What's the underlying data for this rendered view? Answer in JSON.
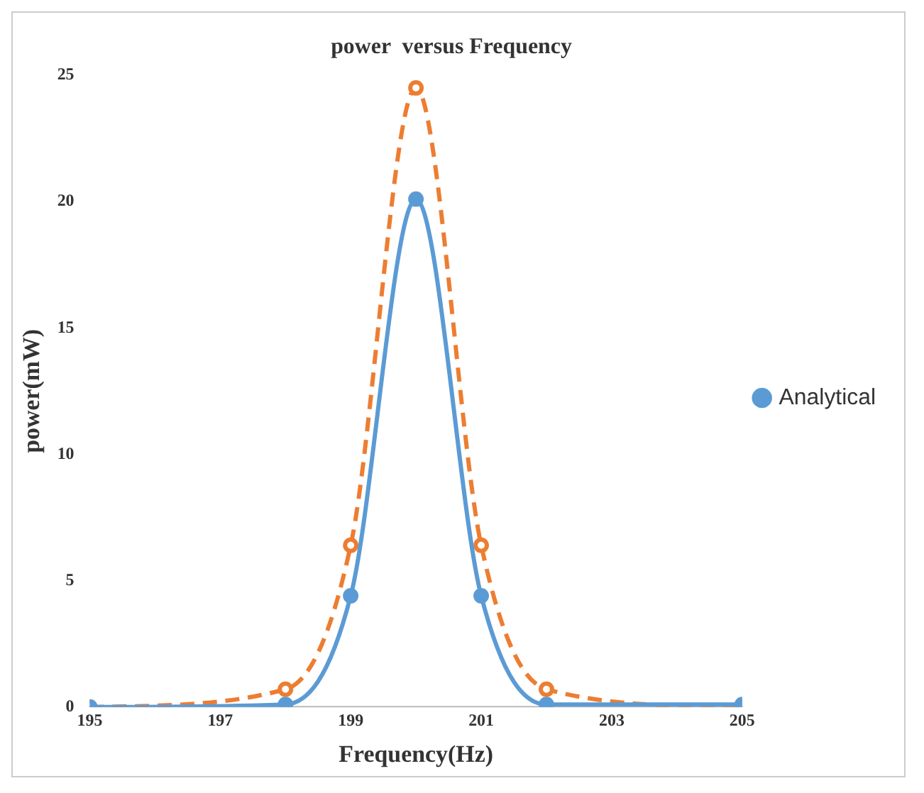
{
  "chart_data": {
    "type": "line",
    "title": "power  versus Frequency",
    "xlabel": "Frequency(Hz)",
    "ylabel": "power(mW)",
    "xlim": [
      195,
      205
    ],
    "xticks": [
      195,
      197,
      199,
      201,
      203,
      205
    ],
    "ylim": [
      0,
      25
    ],
    "yticks": [
      0,
      5,
      10,
      15,
      20,
      25
    ],
    "grid": false,
    "legend": "right",
    "marker": "circle",
    "series": [
      {
        "name": "Analytical",
        "color": "#5b9bd5",
        "x": [
          195,
          198,
          199,
          200,
          201,
          202,
          205
        ],
        "values": [
          0,
          0.1,
          4.4,
          20.1,
          4.4,
          0.1,
          0.1
        ],
        "line_style": "solid"
      },
      {
        "color": "#ed7d31",
        "x": [
          195,
          198,
          199,
          200,
          201,
          202,
          205
        ],
        "values": [
          0,
          0.7,
          6.4,
          24.5,
          6.4,
          0.7,
          0
        ],
        "line_style": "dashed"
      }
    ]
  }
}
